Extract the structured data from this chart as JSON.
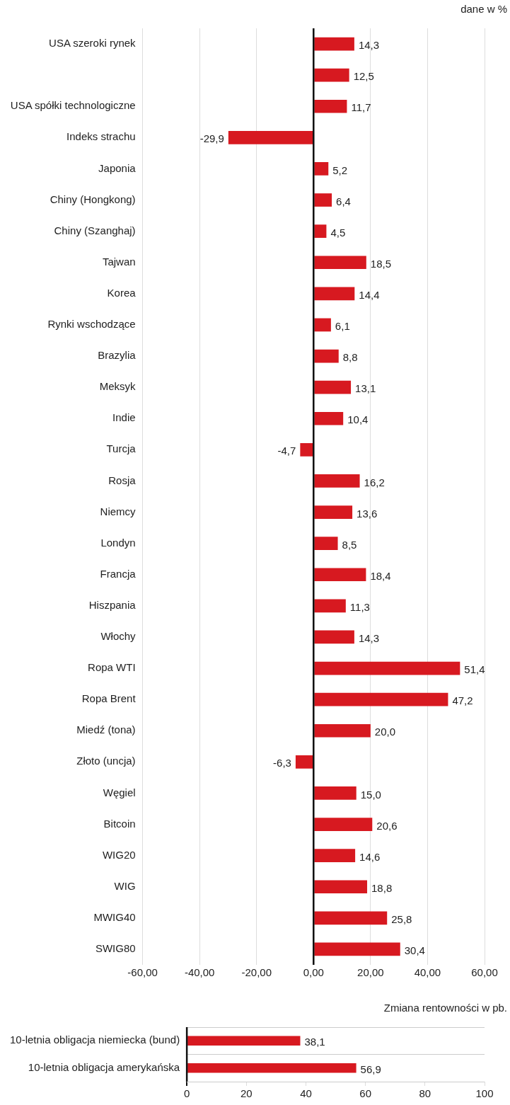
{
  "chart_data": [
    {
      "type": "bar",
      "orientation": "horizontal",
      "annotations": [
        "dane w %"
      ],
      "categories": [
        "USA szeroki rynek",
        null,
        "USA spółki technologiczne",
        "Indeks strachu",
        "Japonia",
        "Chiny (Hongkong)",
        "Chiny (Szanghaj)",
        "Tajwan",
        "Korea",
        "Rynki wschodzące",
        "Brazylia",
        "Meksyk",
        "Indie",
        "Turcja",
        "Rosja",
        "Niemcy",
        "Londyn",
        "Francja",
        "Hiszpania",
        "Włochy",
        "Ropa WTI",
        "Ropa Brent",
        "Miedź (tona)",
        "Złoto (uncja)",
        "Węgiel",
        "Bitcoin",
        "WIG20",
        "WIG",
        "MWIG40",
        "SWIG80"
      ],
      "values": [
        14.3,
        12.5,
        11.7,
        -29.9,
        5.2,
        6.4,
        4.5,
        18.5,
        14.4,
        6.1,
        8.8,
        13.1,
        10.4,
        -4.7,
        16.2,
        13.6,
        8.5,
        18.4,
        11.3,
        14.3,
        51.4,
        47.2,
        20.0,
        -6.3,
        15.0,
        20.6,
        14.6,
        18.8,
        25.8,
        30.4
      ],
      "value_labels": [
        "14,3",
        "12,5",
        "11,7",
        "-29,9",
        "5,2",
        "6,4",
        "4,5",
        "18,5",
        "14,4",
        "6,1",
        "8,8",
        "13,1",
        "10,4",
        "-4,7",
        "16,2",
        "13,6",
        "8,5",
        "18,4",
        "11,3",
        "14,3",
        "51,4",
        "47,2",
        "20,0",
        "-6,3",
        "15,0",
        "20,6",
        "14,6",
        "18,8",
        "25,8",
        "30,4"
      ],
      "color": "#d71920",
      "xlim": [
        -60,
        60
      ],
      "xticks": [
        {
          "value": -60,
          "label": "-60,00"
        },
        {
          "value": -40,
          "label": "-40,00"
        },
        {
          "value": -20,
          "label": "-20,00"
        },
        {
          "value": 0,
          "label": "0,00"
        },
        {
          "value": 20,
          "label": "20,00"
        },
        {
          "value": 40,
          "label": "40,00"
        },
        {
          "value": 60,
          "label": "60,00"
        }
      ],
      "grid": "x",
      "legend": false
    },
    {
      "type": "bar",
      "orientation": "horizontal",
      "annotations": [
        "Zmiana rentowności w pb."
      ],
      "categories": [
        "10-letnia obligacja niemiecka (bund)",
        "10-letnia obligacja amerykańska"
      ],
      "values": [
        38.1,
        56.9
      ],
      "value_labels": [
        "38,1",
        "56,9"
      ],
      "color": "#d71920",
      "xlim": [
        0,
        100
      ],
      "xticks": [
        0,
        20,
        40,
        60,
        80,
        100
      ],
      "grid": "y",
      "legend": false
    }
  ]
}
